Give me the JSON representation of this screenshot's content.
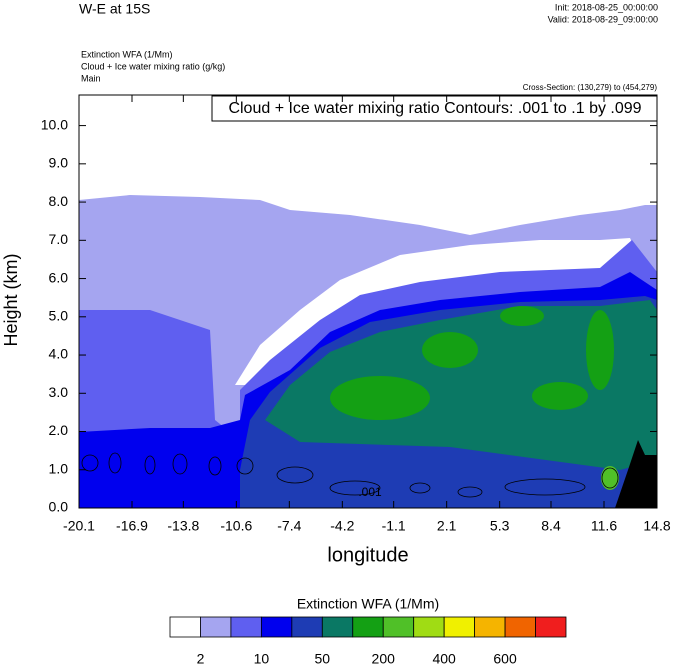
{
  "chart_data": {
    "type": "contour",
    "title": "W-E at 15S",
    "init": "Init: 2018-08-25_00:00:00",
    "valid": "Valid: 2018-08-29_09:00:00",
    "fields": [
      "Extinction WFA   (1/Mm)",
      "Cloud + Ice water mixing ratio   (g/kg)",
      "Main"
    ],
    "cross_section": "Cross-Section: (130,279) to (454,279)",
    "contour_info": "Cloud + Ice water mixing ratio Contours: .001 to .1 by .099",
    "contour_label": ".001",
    "x_label": "longitude",
    "y_label": "Height (km)",
    "xlim": [
      -20.1,
      14.8
    ],
    "xticks": [
      -20.1,
      -16.9,
      -13.8,
      -10.6,
      -7.4,
      -4.2,
      -1.1,
      2.1,
      5.3,
      8.4,
      11.6,
      14.8
    ],
    "ylim": [
      0,
      10.8
    ],
    "yticks": [
      {
        "value": 0,
        "label": "0.0"
      },
      {
        "value": 1,
        "label": "1.0"
      },
      {
        "value": 2,
        "label": "2.0"
      },
      {
        "value": 3,
        "label": "3.0"
      },
      {
        "value": 4,
        "label": "4.0"
      },
      {
        "value": 5,
        "label": "5.0"
      },
      {
        "value": 6,
        "label": "6.0"
      },
      {
        "value": 7,
        "label": "7.0"
      },
      {
        "value": 8,
        "label": "8.0"
      },
      {
        "value": 9,
        "label": "9.0"
      },
      {
        "value": 10,
        "label": "10.0"
      }
    ],
    "colorbar": {
      "title": "Extinction WFA  (1/Mm)",
      "colors": [
        "#ffffff",
        "#a5a5f0",
        "#5f5ff0",
        "#0000ee",
        "#1e3cb4",
        "#0a7864",
        "#14a014",
        "#50c028",
        "#a0dc14",
        "#f0f000",
        "#f5b400",
        "#f06400",
        "#f01e1e"
      ],
      "labels": [
        2,
        10,
        50,
        200,
        400,
        600
      ]
    }
  }
}
